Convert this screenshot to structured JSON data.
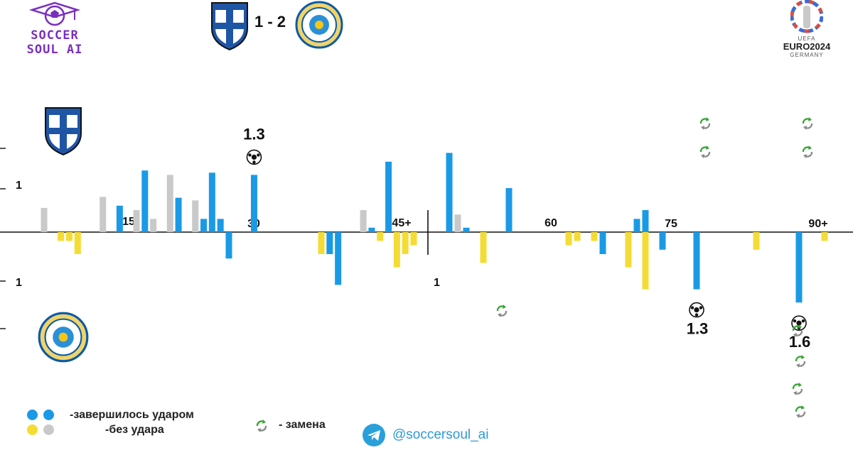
{
  "brand": {
    "line1": "SOCCER",
    "line2": "SOUL AI"
  },
  "match": {
    "score": "1 - 2",
    "home_team_badge": "SUOMI",
    "away_team_badge": "ҚАЗАҚСТАННЫҢ ФУТБОЛ ФЕДЕРАЦИЯСЫ"
  },
  "competition": {
    "name": "EURO2024",
    "host": "GERMANY",
    "small": "UEFA"
  },
  "legend": {
    "shot": "-завершилось ударом",
    "no_shot": "-без удара",
    "sub": "- замена"
  },
  "footer": {
    "handle": "@soccersoul_ai"
  },
  "colors": {
    "shot": "#1a9ae6",
    "no_shot_home": "#c9c9c9",
    "no_shot_away": "#f5dc35",
    "sub_green": "#3aa535",
    "sub_gray": "#8a8a8a",
    "brand": "#7a2fc0"
  },
  "chart_data": {
    "type": "bar",
    "title": "",
    "x_tick_labels": [
      "15",
      "30",
      "45+",
      "60",
      "75",
      "90+"
    ],
    "y_tick_labels": [
      "1",
      "1",
      "1"
    ],
    "home_bars": [
      {
        "minute": 3,
        "value": 0.55,
        "shot": false
      },
      {
        "minute": 10,
        "value": 0.8,
        "shot": false
      },
      {
        "minute": 12,
        "value": 0.6,
        "shot": true
      },
      {
        "minute": 14,
        "value": 0.5,
        "shot": false
      },
      {
        "minute": 15,
        "value": 1.4,
        "shot": true
      },
      {
        "minute": 16,
        "value": 0.3,
        "shot": false
      },
      {
        "minute": 18,
        "value": 1.3,
        "shot": false
      },
      {
        "minute": 19,
        "value": 0.78,
        "shot": true
      },
      {
        "minute": 21,
        "value": 0.72,
        "shot": false
      },
      {
        "minute": 22,
        "value": 0.3,
        "shot": true
      },
      {
        "minute": 23,
        "value": 1.35,
        "shot": true
      },
      {
        "minute": 24,
        "value": 0.3,
        "shot": true
      },
      {
        "minute": 28,
        "value": 1.3,
        "shot": true,
        "goal": true,
        "label": "1.3"
      },
      {
        "minute": 41,
        "value": 0.5,
        "shot": false
      },
      {
        "minute": 42,
        "value": 0.1,
        "shot": true
      },
      {
        "minute": 44,
        "value": 1.6,
        "shot": true
      },
      {
        "minute": 49,
        "value": 1.8,
        "shot": true
      },
      {
        "minute": 50,
        "value": 0.4,
        "shot": false
      },
      {
        "minute": 51,
        "value": 0.1,
        "shot": true
      },
      {
        "minute": 56,
        "value": 1.0,
        "shot": true
      },
      {
        "minute": 71,
        "value": 0.3,
        "shot": true
      },
      {
        "minute": 72,
        "value": 0.5,
        "shot": true
      }
    ],
    "away_bars": [
      {
        "minute": 5,
        "value": 0.2,
        "shot": false
      },
      {
        "minute": 6,
        "value": 0.2,
        "shot": false
      },
      {
        "minute": 7,
        "value": 0.5,
        "shot": false
      },
      {
        "minute": 25,
        "value": 0.6,
        "shot": true
      },
      {
        "minute": 36,
        "value": 0.5,
        "shot": false
      },
      {
        "minute": 37,
        "value": 0.5,
        "shot": true
      },
      {
        "minute": 38,
        "value": 1.2,
        "shot": true
      },
      {
        "minute": 43,
        "value": 0.2,
        "shot": false
      },
      {
        "minute": 45,
        "value": 0.8,
        "shot": false
      },
      {
        "minute": 46,
        "value": 0.5,
        "shot": false
      },
      {
        "minute": 47,
        "value": 0.3,
        "shot": false
      },
      {
        "minute": 53,
        "value": 0.7,
        "shot": false
      },
      {
        "minute": 63,
        "value": 0.3,
        "shot": false
      },
      {
        "minute": 64,
        "value": 0.2,
        "shot": false
      },
      {
        "minute": 66,
        "value": 0.2,
        "shot": false
      },
      {
        "minute": 67,
        "value": 0.5,
        "shot": true
      },
      {
        "minute": 70,
        "value": 0.8,
        "shot": false
      },
      {
        "minute": 72,
        "value": 1.3,
        "shot": false
      },
      {
        "minute": 74,
        "value": 0.4,
        "shot": true
      },
      {
        "minute": 78,
        "value": 1.3,
        "shot": true,
        "goal": true,
        "label": "1.3"
      },
      {
        "minute": 85,
        "value": 0.4,
        "shot": false
      },
      {
        "minute": 90,
        "value": 1.6,
        "shot": true,
        "goal": true,
        "label": "1.6"
      },
      {
        "minute": 93,
        "value": 0.2,
        "shot": false
      }
    ],
    "home_subs": [
      {
        "minute": 79,
        "slot": 1
      },
      {
        "minute": 79,
        "slot": 2
      },
      {
        "minute": 91,
        "slot": 1
      },
      {
        "minute": 91,
        "slot": 2
      }
    ],
    "away_subs": [
      {
        "minute": 56,
        "slot": 1
      },
      {
        "minute": 91,
        "slot": 2
      },
      {
        "minute": 91,
        "slot": 3
      },
      {
        "minute": 91,
        "slot": 4
      },
      {
        "minute": 91,
        "slot": 5
      }
    ]
  }
}
